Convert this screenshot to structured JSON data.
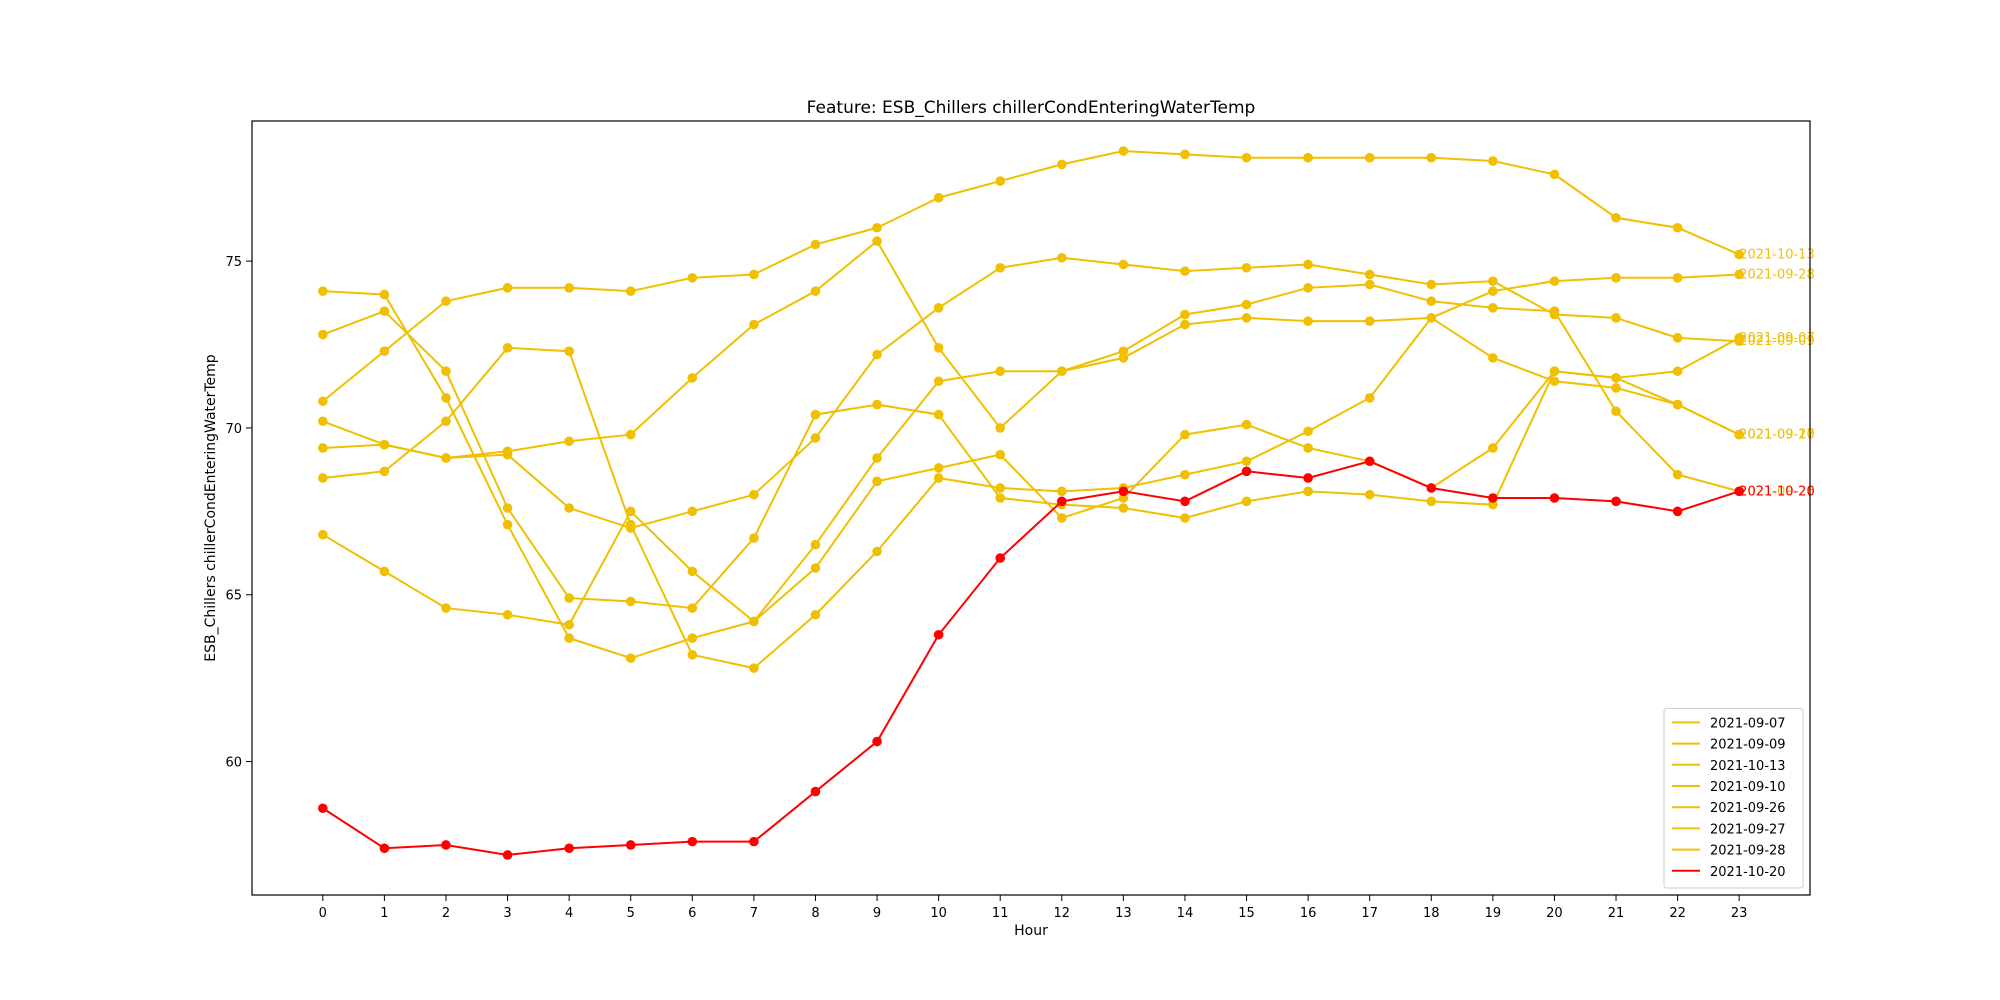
{
  "chart_data": {
    "type": "line",
    "title": "Feature: ESB_Chillers chillerCondEnteringWaterTemp",
    "xlabel": "Hour",
    "ylabel": "ESB_Chillers chillerCondEnteringWaterTemp",
    "x": [
      0,
      1,
      2,
      3,
      4,
      5,
      6,
      7,
      8,
      9,
      10,
      11,
      12,
      13,
      14,
      15,
      16,
      17,
      18,
      19,
      20,
      21,
      22,
      23
    ],
    "x_ticks": [
      "0",
      "1",
      "2",
      "3",
      "4",
      "5",
      "6",
      "7",
      "8",
      "9",
      "10",
      "11",
      "12",
      "13",
      "14",
      "15",
      "16",
      "17",
      "18",
      "19",
      "20",
      "21",
      "22",
      "23"
    ],
    "y_ticks": [
      "60",
      "65",
      "70",
      "75"
    ],
    "xlim": [
      -1.15,
      24.15
    ],
    "ylim": [
      56.0,
      79.2
    ],
    "grid": false,
    "legend_position": "lower right",
    "series": [
      {
        "name": "2021-09-07",
        "color": "#f0c000",
        "end_label": "2021-09-07",
        "values": [
          72.8,
          73.5,
          71.7,
          67.6,
          64.9,
          64.8,
          64.6,
          66.7,
          70.4,
          70.7,
          70.4,
          67.9,
          67.7,
          67.6,
          67.3,
          67.8,
          68.1,
          68.0,
          67.8,
          67.7,
          71.7,
          71.5,
          71.7,
          72.7
        ]
      },
      {
        "name": "2021-09-09",
        "color": "#f0c000",
        "end_label": "2021-09-09",
        "values": [
          69.4,
          69.5,
          69.1,
          69.2,
          67.6,
          67.0,
          67.5,
          68.0,
          69.7,
          72.2,
          73.6,
          74.8,
          75.1,
          74.9,
          74.7,
          74.8,
          74.9,
          74.6,
          74.3,
          74.4,
          73.4,
          73.3,
          72.7,
          72.6
        ]
      },
      {
        "name": "2021-10-13",
        "color": "#f0c000",
        "end_label": "2021-10-13",
        "values": [
          70.8,
          72.3,
          73.8,
          74.2,
          74.2,
          74.1,
          74.5,
          74.6,
          75.5,
          76.0,
          76.9,
          77.4,
          77.9,
          78.3,
          78.2,
          78.1,
          78.1,
          78.1,
          78.1,
          78.0,
          77.6,
          76.3,
          76.0,
          75.2
        ]
      },
      {
        "name": "2021-09-10",
        "color": "#f0c000",
        "end_label": "2021-09-10",
        "values": [
          74.1,
          74.0,
          70.9,
          67.1,
          63.7,
          63.1,
          63.7,
          64.2,
          65.8,
          68.4,
          68.8,
          69.2,
          67.3,
          67.9,
          69.8,
          70.1,
          69.4,
          69.0,
          68.2,
          69.4,
          71.7,
          71.5,
          70.7,
          69.8
        ]
      },
      {
        "name": "2021-09-26",
        "color": "#f0c000",
        "end_label": "2021-09-26",
        "values": [
          66.8,
          65.7,
          64.6,
          64.4,
          64.1,
          67.5,
          65.7,
          64.2,
          66.5,
          69.1,
          71.4,
          71.7,
          71.7,
          72.3,
          73.4,
          73.7,
          74.2,
          74.3,
          73.8,
          73.6,
          73.5,
          70.5,
          68.6,
          68.1
        ]
      },
      {
        "name": "2021-09-27",
        "color": "#f0c000",
        "end_label": "2021-09-27",
        "values": [
          70.2,
          69.5,
          69.1,
          69.3,
          69.6,
          69.8,
          71.5,
          73.1,
          74.1,
          75.6,
          72.4,
          70.0,
          71.7,
          72.1,
          73.1,
          73.3,
          73.2,
          73.2,
          73.3,
          72.1,
          71.4,
          71.2,
          70.7,
          69.8
        ]
      },
      {
        "name": "2021-09-28",
        "color": "#f0c000",
        "end_label": "2021-09-28",
        "values": [
          68.5,
          68.7,
          70.2,
          72.4,
          72.3,
          67.1,
          63.2,
          62.8,
          64.4,
          66.3,
          68.5,
          68.2,
          68.1,
          68.2,
          68.6,
          69.0,
          69.9,
          70.9,
          73.3,
          74.1,
          74.4,
          74.5,
          74.5,
          74.6
        ]
      },
      {
        "name": "2021-10-20",
        "color": "#ff0000",
        "end_label": "2021-10-20",
        "values": [
          58.6,
          57.4,
          57.5,
          57.2,
          57.4,
          57.5,
          57.6,
          57.6,
          59.1,
          60.6,
          63.8,
          66.1,
          67.8,
          68.1,
          67.8,
          68.7,
          68.5,
          69.0,
          68.2,
          67.9,
          67.9,
          67.8,
          67.5,
          68.1
        ]
      }
    ]
  }
}
